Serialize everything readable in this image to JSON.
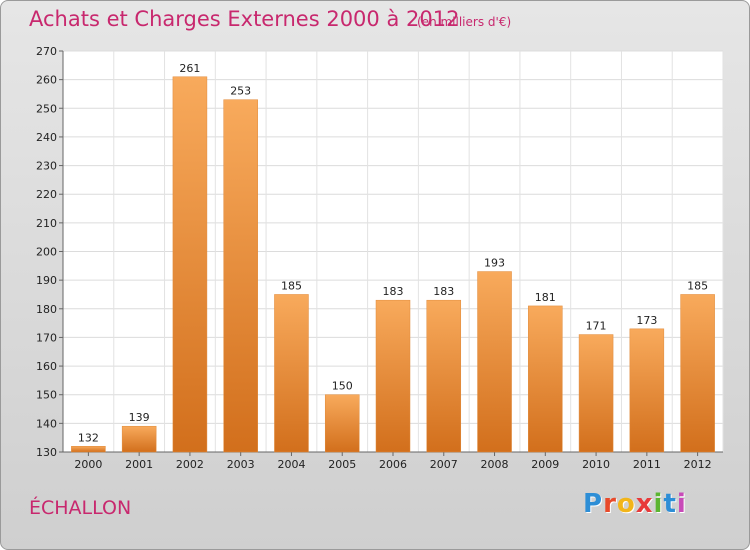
{
  "header": {
    "title": "Achats et Charges Externes 2000 à 2012",
    "subtitle": "(en milliers d'€)"
  },
  "footer": {
    "commune": "ÉCHALLON",
    "brand_letters": [
      "P",
      "r",
      "o",
      "x",
      "i",
      "t",
      "i"
    ],
    "brand_colors": [
      "#2d8ed6",
      "#e84a2a",
      "#f2b51a",
      "#e83a3a",
      "#5cb531",
      "#2d8ed6",
      "#c84ab8"
    ]
  },
  "colors": {
    "title": "#c8286e",
    "bar_light": "#f8aa5c",
    "bar_dark": "#d26f1c"
  },
  "chart_data": {
    "type": "bar",
    "title": "Achats et Charges Externes 2000 à 2012",
    "categories": [
      "2000",
      "2001",
      "2002",
      "2003",
      "2004",
      "2005",
      "2006",
      "2007",
      "2008",
      "2009",
      "2010",
      "2011",
      "2012"
    ],
    "values": [
      132,
      139,
      261,
      253,
      185,
      150,
      183,
      183,
      193,
      181,
      171,
      173,
      185
    ],
    "ylim": [
      130,
      270
    ],
    "yticks": [
      130,
      140,
      150,
      160,
      170,
      180,
      190,
      200,
      210,
      220,
      230,
      240,
      250,
      260,
      270
    ],
    "grid": true
  }
}
